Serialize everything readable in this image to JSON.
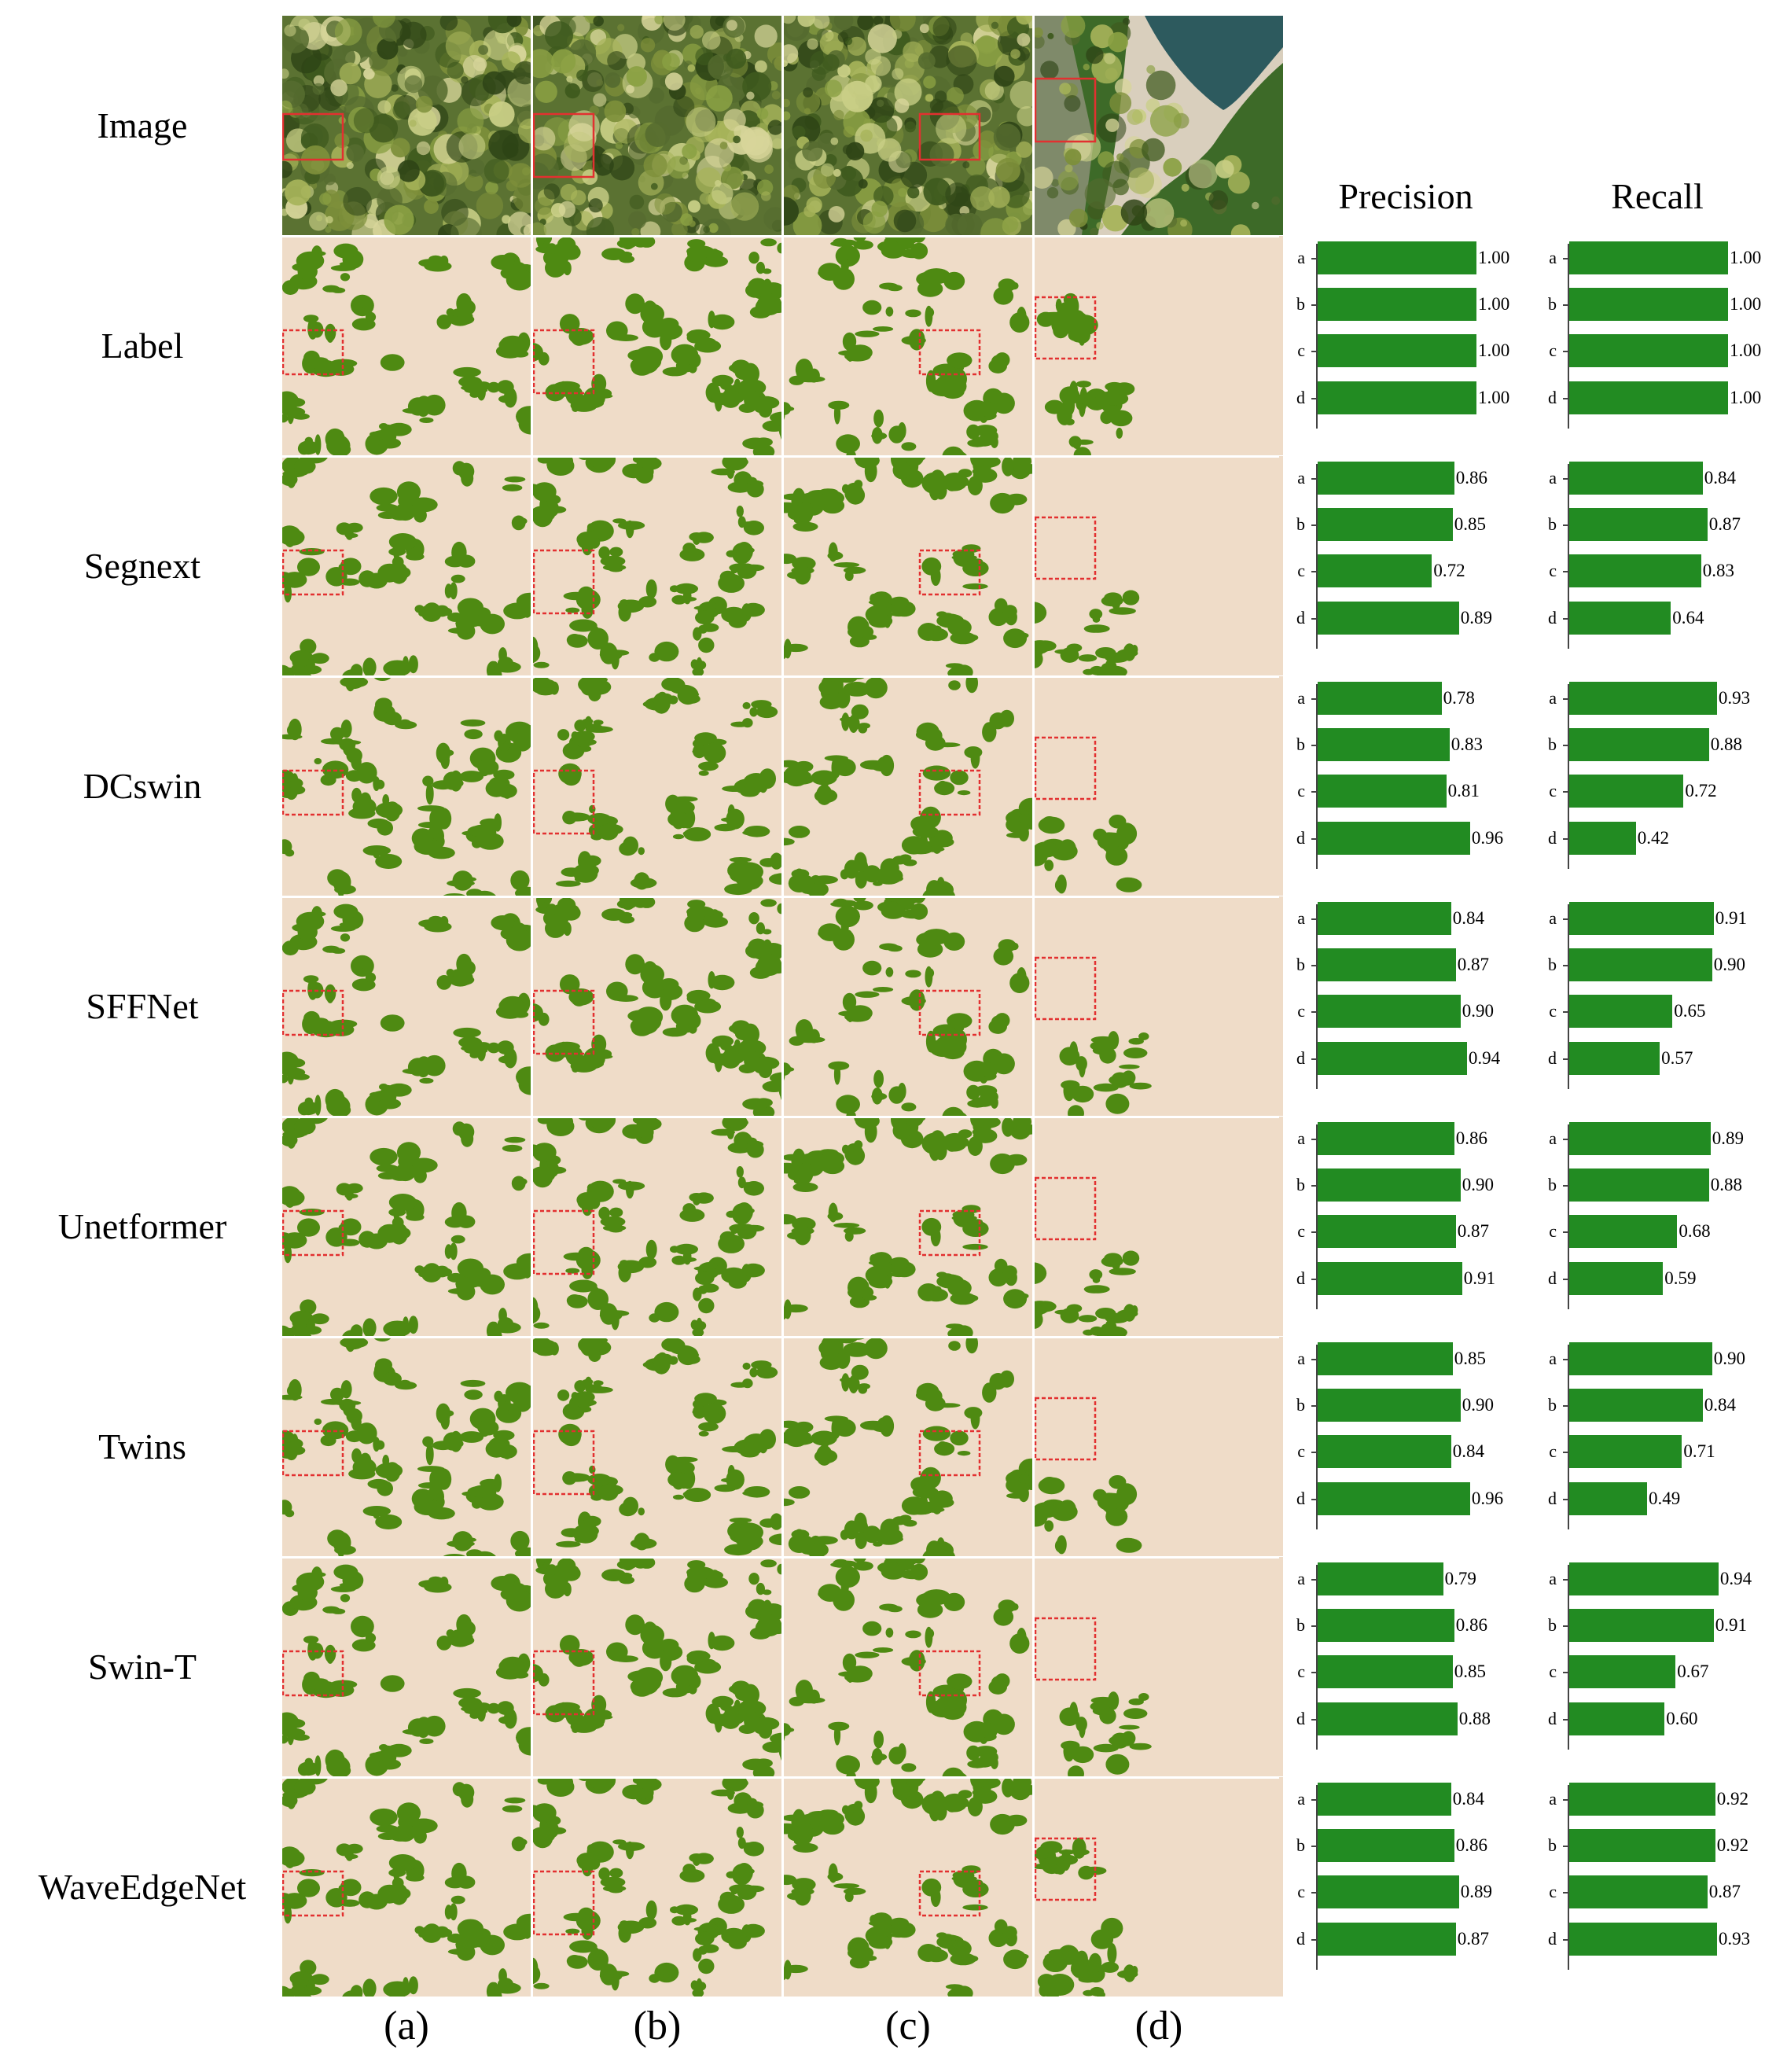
{
  "rows": [
    "Image",
    "Label",
    "Segnext",
    "DCswin",
    "SFFNet",
    "Unetformer",
    "Twins",
    "Swin-T",
    "WaveEdgeNet"
  ],
  "columns": [
    "(a)",
    "(b)",
    "(c)",
    "(d)"
  ],
  "metrics": {
    "precision_title": "Precision",
    "recall_title": "Recall",
    "bar_letters": [
      "a",
      "b",
      "c",
      "d"
    ],
    "bar_max": 1.0
  },
  "chart_data": [
    {
      "type": "bar",
      "model": "Label",
      "categories": [
        "a",
        "b",
        "c",
        "d"
      ],
      "series": [
        {
          "name": "Precision",
          "values": [
            1.0,
            1.0,
            1.0,
            1.0
          ],
          "labels": [
            "1.00",
            "1.00",
            "1.00",
            "1.00"
          ]
        },
        {
          "name": "Recall",
          "values": [
            1.0,
            1.0,
            1.0,
            1.0
          ],
          "labels": [
            "1.00",
            "1.00",
            "1.00",
            "1.00"
          ]
        }
      ]
    },
    {
      "type": "bar",
      "model": "Segnext",
      "categories": [
        "a",
        "b",
        "c",
        "d"
      ],
      "series": [
        {
          "name": "Precision",
          "values": [
            0.86,
            0.85,
            0.72,
            0.89
          ],
          "labels": [
            "0.86",
            "0.85",
            "0.72",
            "0.89"
          ]
        },
        {
          "name": "Recall",
          "values": [
            0.84,
            0.87,
            0.83,
            0.64
          ],
          "labels": [
            "0.84",
            "0.87",
            "0.83",
            "0.64"
          ]
        }
      ]
    },
    {
      "type": "bar",
      "model": "DCswin",
      "categories": [
        "a",
        "b",
        "c",
        "d"
      ],
      "series": [
        {
          "name": "Precision",
          "values": [
            0.78,
            0.83,
            0.81,
            0.96
          ],
          "labels": [
            "0.78",
            "0.83",
            "0.81",
            "0.96"
          ]
        },
        {
          "name": "Recall",
          "values": [
            0.93,
            0.88,
            0.72,
            0.42
          ],
          "labels": [
            "0.93",
            "0.88",
            "0.72",
            "0.42"
          ]
        }
      ]
    },
    {
      "type": "bar",
      "model": "SFFNet",
      "categories": [
        "a",
        "b",
        "c",
        "d"
      ],
      "series": [
        {
          "name": "Precision",
          "values": [
            0.84,
            0.87,
            0.9,
            0.94
          ],
          "labels": [
            "0.84",
            "0.87",
            "0.90",
            "0.94"
          ]
        },
        {
          "name": "Recall",
          "values": [
            0.91,
            0.9,
            0.65,
            0.57
          ],
          "labels": [
            "0.91",
            "0.90",
            "0.65",
            "0.57"
          ]
        }
      ]
    },
    {
      "type": "bar",
      "model": "Unetformer",
      "categories": [
        "a",
        "b",
        "c",
        "d"
      ],
      "series": [
        {
          "name": "Precision",
          "values": [
            0.86,
            0.9,
            0.87,
            0.91
          ],
          "labels": [
            "0.86",
            "0.90",
            "0.87",
            "0.91"
          ]
        },
        {
          "name": "Recall",
          "values": [
            0.89,
            0.88,
            0.68,
            0.59
          ],
          "labels": [
            "0.89",
            "0.88",
            "0.68",
            "0.59"
          ]
        }
      ]
    },
    {
      "type": "bar",
      "model": "Twins",
      "categories": [
        "a",
        "b",
        "c",
        "d"
      ],
      "series": [
        {
          "name": "Precision",
          "values": [
            0.85,
            0.9,
            0.84,
            0.96
          ],
          "labels": [
            "0.85",
            "0.90",
            "0.84",
            "0.96"
          ]
        },
        {
          "name": "Recall",
          "values": [
            0.9,
            0.84,
            0.71,
            0.49
          ],
          "labels": [
            "0.90",
            "0.84",
            "0.71",
            "0.49"
          ]
        }
      ]
    },
    {
      "type": "bar",
      "model": "Swin-T",
      "categories": [
        "a",
        "b",
        "c",
        "d"
      ],
      "series": [
        {
          "name": "Precision",
          "values": [
            0.79,
            0.86,
            0.85,
            0.88
          ],
          "labels": [
            "0.79",
            "0.86",
            "0.85",
            "0.88"
          ]
        },
        {
          "name": "Recall",
          "values": [
            0.94,
            0.91,
            0.67,
            0.6
          ],
          "labels": [
            "0.94",
            "0.91",
            "0.67",
            "0.60"
          ]
        }
      ]
    },
    {
      "type": "bar",
      "model": "WaveEdgeNet",
      "categories": [
        "a",
        "b",
        "c",
        "d"
      ],
      "series": [
        {
          "name": "Precision",
          "values": [
            0.84,
            0.86,
            0.89,
            0.87
          ],
          "labels": [
            "0.84",
            "0.86",
            "0.89",
            "0.87"
          ]
        },
        {
          "name": "Recall",
          "values": [
            0.92,
            0.92,
            0.87,
            0.93
          ],
          "labels": [
            "0.92",
            "0.92",
            "0.87",
            "0.93"
          ]
        }
      ]
    }
  ],
  "colors": {
    "bar": "#228b22",
    "mask_background": "#efdcc8",
    "mask_foreground": "#4e8a12",
    "highlight_box": "#e23030"
  }
}
